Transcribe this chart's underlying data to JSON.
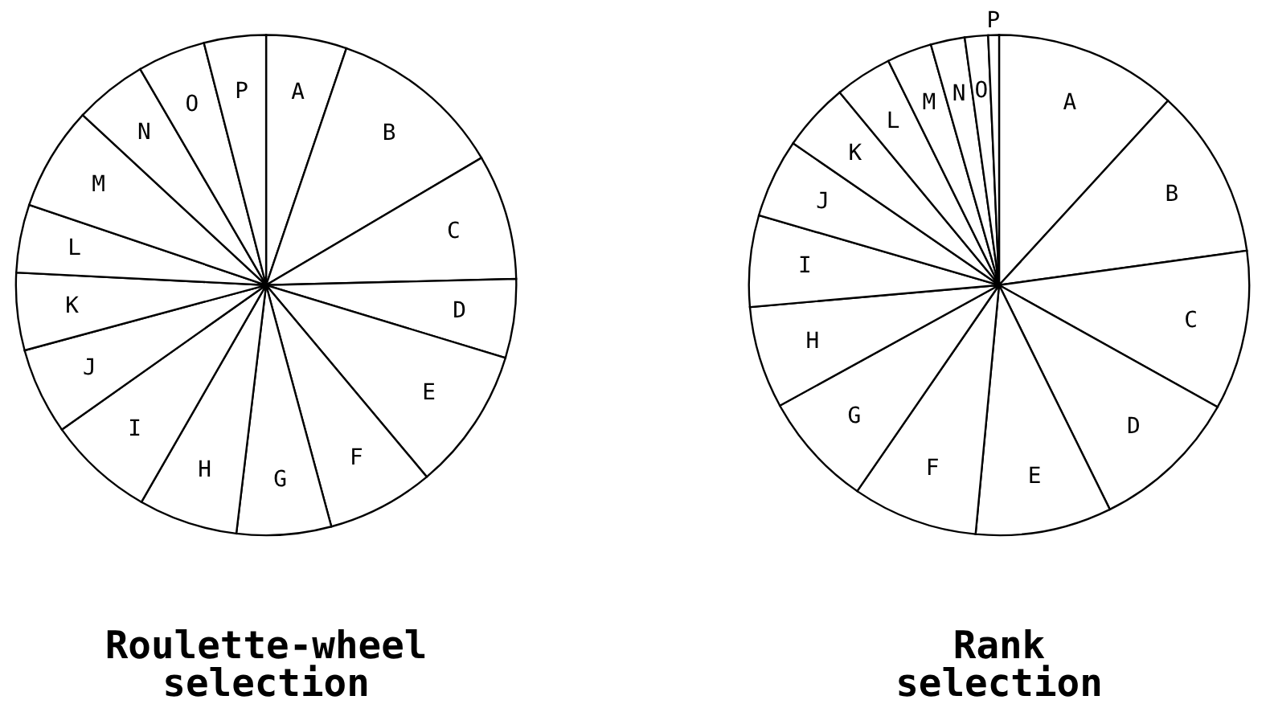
{
  "chart_data": [
    {
      "type": "pie",
      "title": "Roulette-wheel\nselection",
      "categories": [
        "A",
        "B",
        "C",
        "D",
        "E",
        "F",
        "G",
        "H",
        "I",
        "J",
        "K",
        "L",
        "M",
        "N",
        "O",
        "P"
      ],
      "values": [
        5.2,
        11.3,
        8.1,
        5.1,
        9.2,
        6.9,
        6.1,
        6.4,
        6.9,
        5.6,
        5.0,
        4.4,
        6.7,
        4.7,
        4.4,
        4.0
      ],
      "colors": [
        "#ffffff",
        "#ffffff",
        "#ffffff",
        "#ffffff",
        "#ffffff",
        "#ffffff",
        "#ffffff",
        "#ffffff",
        "#ffffff",
        "#ffffff",
        "#ffffff",
        "#ffffff",
        "#ffffff",
        "#ffffff",
        "#ffffff",
        "#ffffff"
      ],
      "legend": false
    },
    {
      "type": "pie",
      "title": "Rank\nselection",
      "categories": [
        "A",
        "B",
        "C",
        "D",
        "E",
        "F",
        "G",
        "H",
        "I",
        "J",
        "K",
        "L",
        "M",
        "N",
        "O",
        "P"
      ],
      "values": [
        11.8,
        11.0,
        10.3,
        9.6,
        8.8,
        8.1,
        7.4,
        6.6,
        5.9,
        5.1,
        4.4,
        3.7,
        2.9,
        2.2,
        1.5,
        0.7
      ],
      "colors": [
        "#ffffff",
        "#ffffff",
        "#ffffff",
        "#ffffff",
        "#ffffff",
        "#ffffff",
        "#ffffff",
        "#ffffff",
        "#ffffff",
        "#ffffff",
        "#ffffff",
        "#ffffff",
        "#ffffff",
        "#ffffff",
        "#ffffff",
        "#ffffff"
      ],
      "legend": false
    }
  ]
}
